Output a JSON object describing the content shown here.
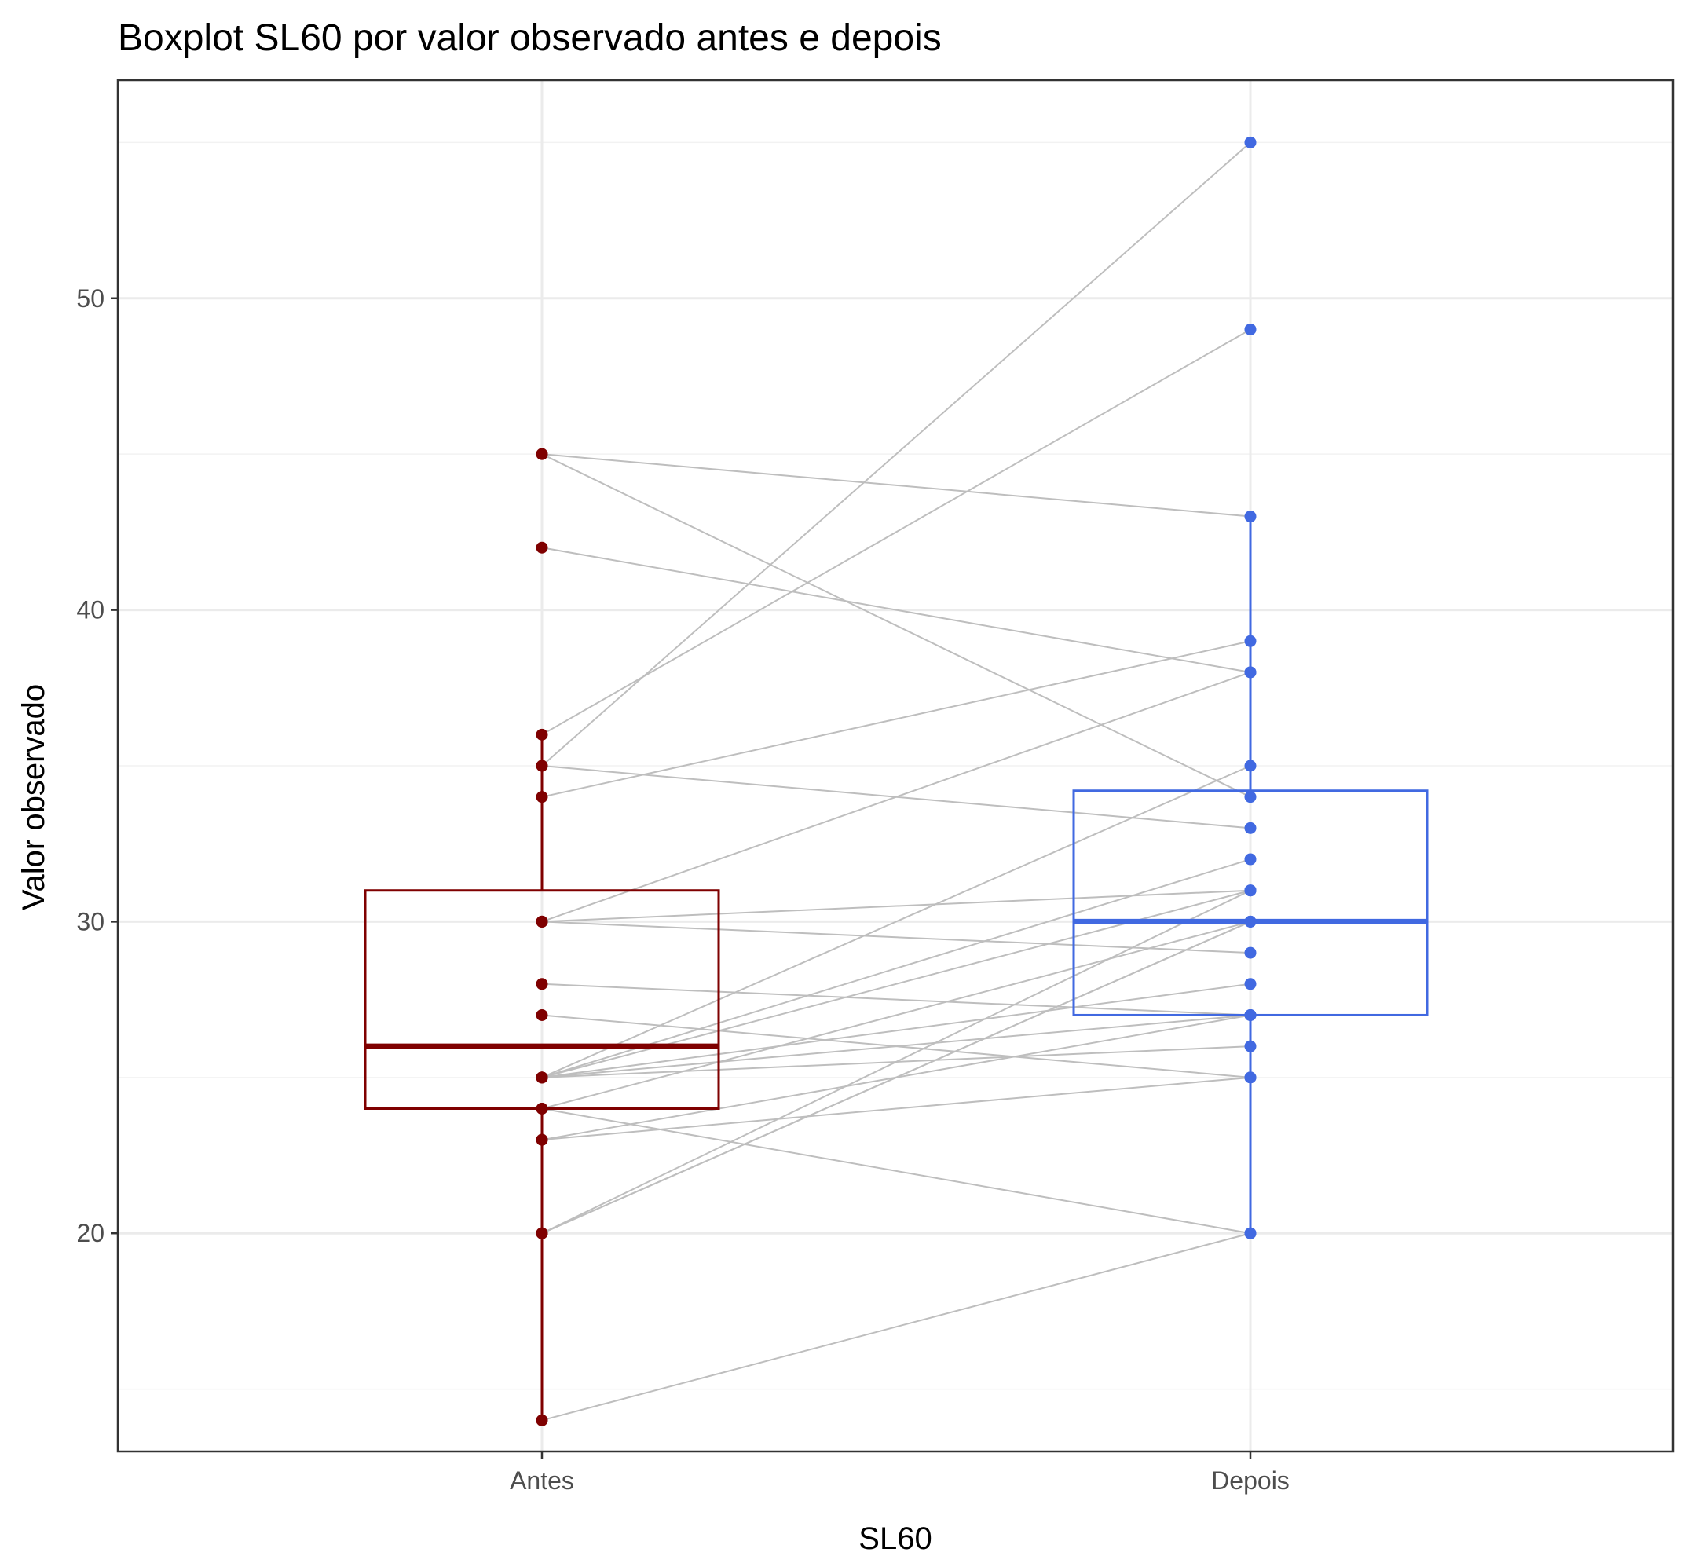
{
  "chart_data": {
    "type": "boxplot",
    "title": "Boxplot SL60 por valor observado antes e depois",
    "xlabel": "SL60",
    "ylabel": "Valor observado",
    "categories": [
      "Antes",
      "Depois"
    ],
    "ylim": [
      13,
      57
    ],
    "yticks": [
      20,
      30,
      40,
      50
    ],
    "grid": true,
    "colors": {
      "Antes": "#7f0000",
      "Depois": "#4169e1",
      "pair_lines": "#bebebe"
    },
    "boxes": [
      {
        "name": "Antes",
        "whisker_low": 14,
        "q1": 24,
        "median": 26,
        "q3": 31,
        "whisker_high": 36
      },
      {
        "name": "Depois",
        "whisker_low": 20,
        "q1": 27,
        "median": 30,
        "q3": 34.2,
        "whisker_high": 43
      }
    ],
    "pairs": [
      [
        45,
        43
      ],
      [
        45,
        34
      ],
      [
        42,
        38
      ],
      [
        36,
        49
      ],
      [
        35,
        55
      ],
      [
        35,
        33
      ],
      [
        34,
        39
      ],
      [
        30,
        38
      ],
      [
        30,
        31
      ],
      [
        30,
        29
      ],
      [
        28,
        27
      ],
      [
        27,
        25
      ],
      [
        25,
        35
      ],
      [
        25,
        32
      ],
      [
        25,
        31
      ],
      [
        25,
        28
      ],
      [
        25,
        27
      ],
      [
        25,
        26
      ],
      [
        24,
        30
      ],
      [
        24,
        20
      ],
      [
        23,
        27
      ],
      [
        23,
        25
      ],
      [
        20,
        31
      ],
      [
        20,
        30
      ],
      [
        20,
        30
      ],
      [
        14,
        20
      ]
    ]
  }
}
